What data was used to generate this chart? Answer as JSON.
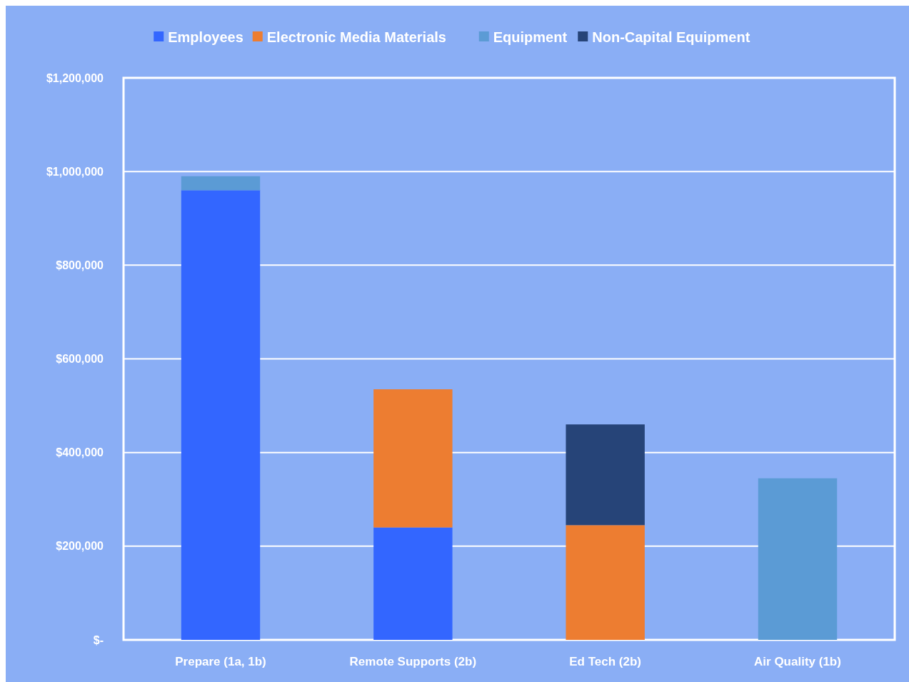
{
  "chart_data": {
    "type": "bar",
    "stacked": true,
    "categories": [
      "Prepare (1a, 1b)",
      "Remote Supports (2b)",
      "Ed Tech (2b)",
      "Air Quality (1b)"
    ],
    "series": [
      {
        "name": "Employees",
        "color": "#3366ff",
        "values": [
          960000,
          240000,
          null,
          null
        ]
      },
      {
        "name": "Electronic Media Materials",
        "color": "#ed7d31",
        "values": [
          null,
          295000,
          245000,
          null
        ]
      },
      {
        "name": "Equipment",
        "color": "#5b9bd5",
        "values": [
          30000,
          null,
          null,
          345000
        ]
      },
      {
        "name": "Non-Capital Equipment",
        "color": "#264478",
        "values": [
          null,
          null,
          215000,
          null
        ]
      }
    ],
    "ylim": [
      0,
      1200000
    ],
    "yticks": [
      {
        "value": 0,
        "label": "$-"
      },
      {
        "value": 200000,
        "label": "$200,000"
      },
      {
        "value": 400000,
        "label": "$400,000"
      },
      {
        "value": 600000,
        "label": "$600,000"
      },
      {
        "value": 800000,
        "label": "$800,000"
      },
      {
        "value": 1000000,
        "label": "$1,000,000"
      },
      {
        "value": 1200000,
        "label": "$1,200,000"
      }
    ],
    "grid": "y",
    "legend": "top"
  }
}
